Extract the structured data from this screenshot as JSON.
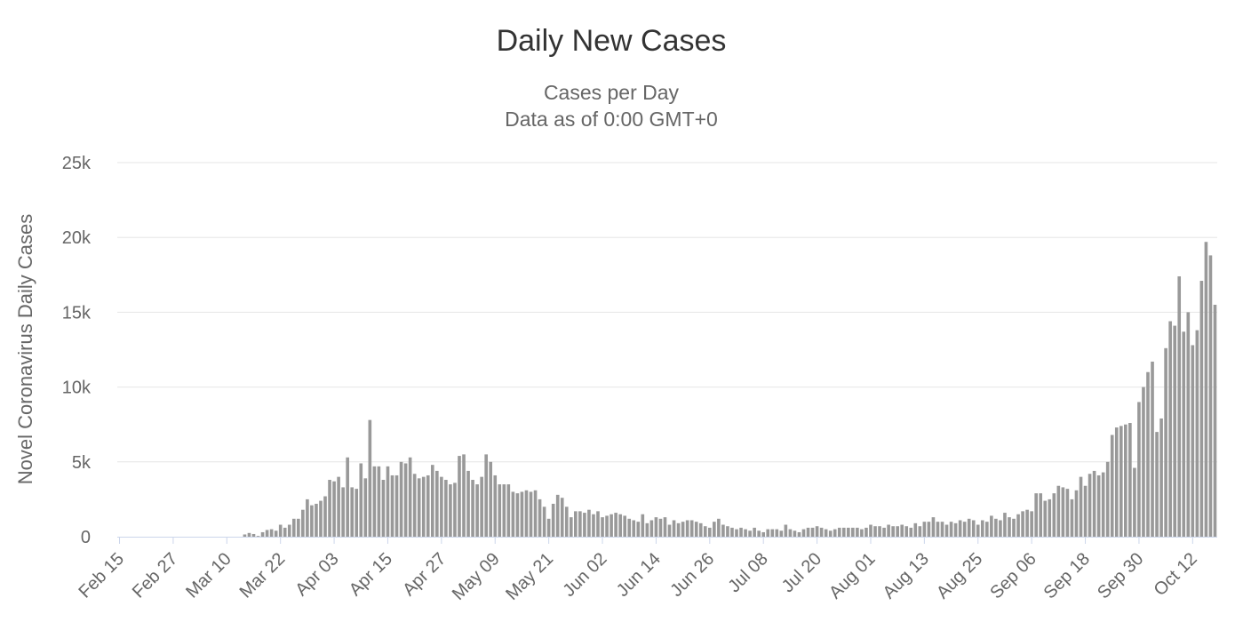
{
  "colors": {
    "bar": "#999999",
    "grid": "#e6e6e6",
    "axis": "#ccd6eb"
  },
  "chart_data": {
    "type": "bar",
    "title": "Daily New Cases",
    "subtitle": [
      "Cases per Day",
      "Data as of 0:00 GMT+0"
    ],
    "xlabel": "",
    "ylabel": "Novel Coronavirus Daily Cases",
    "ylim": [
      0,
      25000
    ],
    "y_ticks": [
      0,
      5000,
      10000,
      15000,
      20000,
      25000
    ],
    "y_tick_labels": [
      "0",
      "5k",
      "10k",
      "15k",
      "20k",
      "25k"
    ],
    "x_tick_labels": [
      "Feb 15",
      "Feb 27",
      "Mar 10",
      "Mar 22",
      "Apr 03",
      "Apr 15",
      "Apr 27",
      "May 09",
      "May 21",
      "Jun 02",
      "Jun 14",
      "Jun 26",
      "Jul 08",
      "Jul 20",
      "Aug 01",
      "Aug 13",
      "Aug 25",
      "Sep 06",
      "Sep 18",
      "Sep 30",
      "Oct 12"
    ],
    "x_tick_interval": 12,
    "grid": true,
    "legend": "none",
    "start_date": "Feb 15",
    "values": [
      0,
      0,
      0,
      0,
      0,
      0,
      0,
      0,
      0,
      0,
      0,
      0,
      0,
      0,
      0,
      0,
      0,
      0,
      0,
      0,
      0,
      0,
      0,
      0,
      0,
      0,
      0,
      0,
      150,
      250,
      180,
      50,
      300,
      450,
      500,
      400,
      800,
      600,
      800,
      1200,
      1200,
      1800,
      2500,
      2100,
      2200,
      2400,
      2700,
      3800,
      3700,
      4000,
      3300,
      5300,
      3300,
      3200,
      4900,
      3900,
      7800,
      4700,
      4700,
      3800,
      4700,
      4100,
      4100,
      5000,
      4900,
      5300,
      4200,
      3900,
      4000,
      4100,
      4800,
      4400,
      4000,
      3800,
      3500,
      3600,
      5400,
      5500,
      4400,
      3800,
      3500,
      4000,
      5500,
      5000,
      4100,
      3500,
      3500,
      3500,
      3000,
      2900,
      3000,
      3100,
      3000,
      3100,
      2500,
      2000,
      1200,
      2200,
      2800,
      2600,
      2000,
      1300,
      1700,
      1700,
      1600,
      1800,
      1500,
      1700,
      1300,
      1400,
      1500,
      1600,
      1500,
      1400,
      1200,
      1100,
      1000,
      1500,
      900,
      1100,
      1300,
      1200,
      1300,
      800,
      1100,
      900,
      1000,
      1100,
      1100,
      1000,
      900,
      700,
      600,
      1000,
      1200,
      800,
      700,
      600,
      500,
      600,
      500,
      400,
      600,
      400,
      300,
      500,
      500,
      500,
      400,
      800,
      500,
      400,
      300,
      500,
      600,
      600,
      700,
      600,
      500,
      400,
      500,
      600,
      600,
      600,
      600,
      600,
      500,
      600,
      800,
      700,
      700,
      600,
      800,
      700,
      700,
      800,
      700,
      600,
      900,
      700,
      1000,
      1000,
      1300,
      1000,
      1000,
      800,
      1000,
      900,
      1100,
      1000,
      1200,
      1100,
      800,
      1100,
      1000,
      1400,
      1200,
      1100,
      1600,
      1300,
      1200,
      1500,
      1700,
      1800,
      1700,
      2900,
      2900,
      2400,
      2500,
      2900,
      3400,
      3300,
      3200,
      2500,
      3100,
      4000,
      3400,
      4200,
      4400,
      4100,
      4300,
      5000,
      6800,
      7300,
      7400,
      7500,
      7600,
      4600,
      9000,
      10000,
      11000,
      11700,
      7000,
      7900,
      12600,
      14400,
      14100,
      17400,
      13700,
      15000,
      12800,
      13800,
      17100,
      19700,
      18800,
      15500
    ]
  }
}
